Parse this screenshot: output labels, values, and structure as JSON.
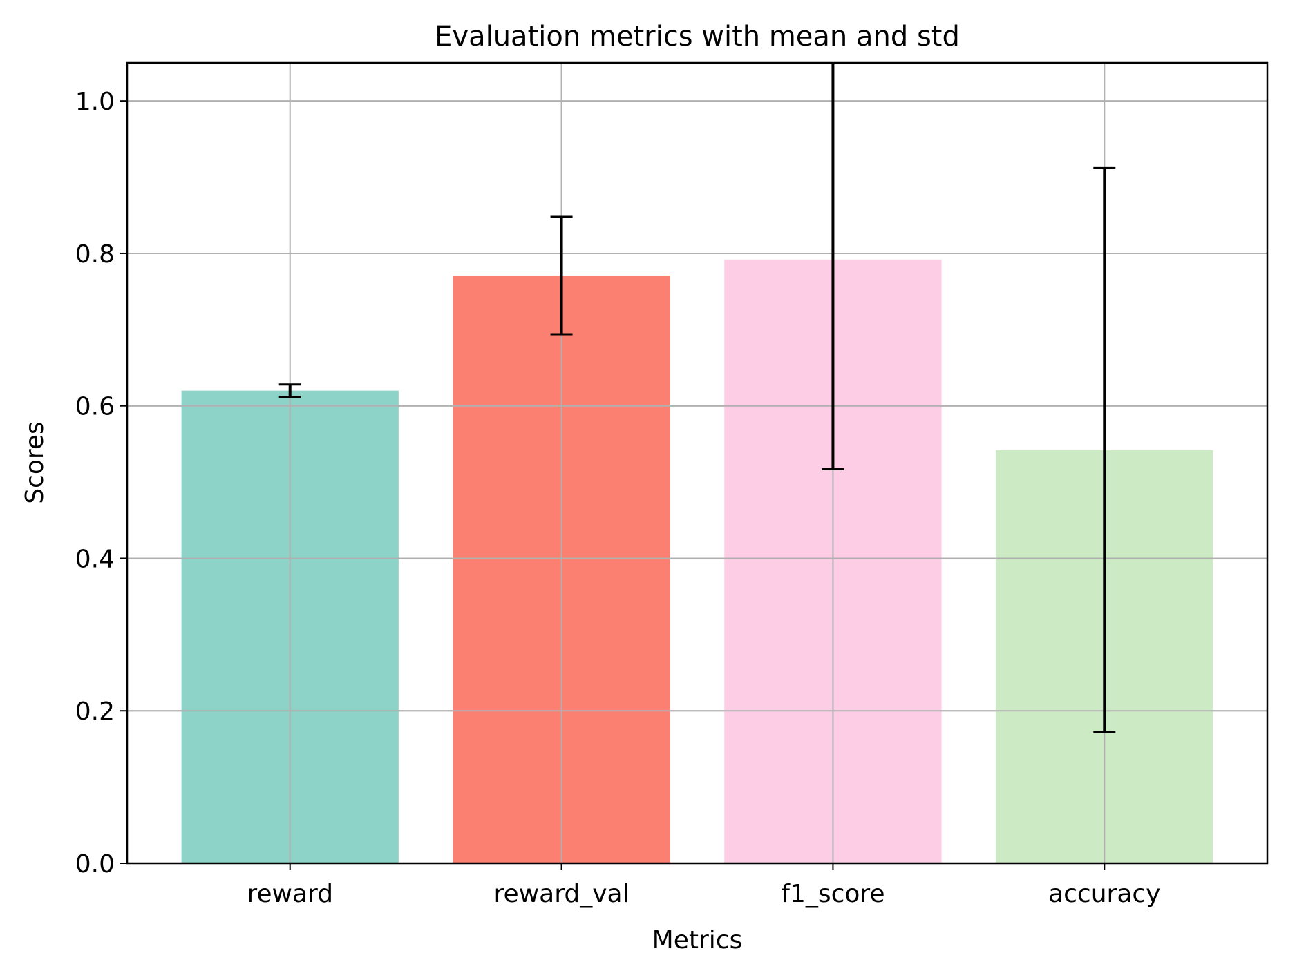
{
  "chart_data": {
    "type": "bar",
    "title": "Evaluation metrics with mean and std",
    "xlabel": "Metrics",
    "ylabel": "Scores",
    "categories": [
      "reward",
      "reward_val",
      "f1_score",
      "accuracy"
    ],
    "values": [
      0.62,
      0.771,
      0.792,
      0.542
    ],
    "std": [
      0.008,
      0.077,
      0.275,
      0.37
    ],
    "colors": [
      "#8dd3c7",
      "#fb8072",
      "#fccde5",
      "#ccebc5"
    ],
    "ylim": [
      0,
      1.05
    ],
    "yticks": [
      0.0,
      0.2,
      0.4,
      0.6,
      0.8,
      1.0
    ],
    "ytick_labels": [
      "0.0",
      "0.2",
      "0.4",
      "0.6",
      "0.8",
      "1.0"
    ],
    "grid": true,
    "error_bar_color": "#000000",
    "grid_color": "#b0b0b0"
  }
}
